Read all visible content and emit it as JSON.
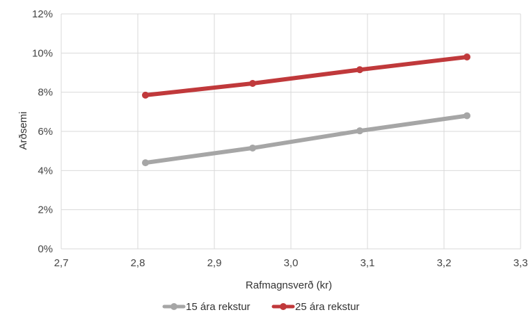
{
  "chart_data": {
    "type": "scatter",
    "xlabel": "Rafmagnsverð (kr)",
    "ylabel": "Arðsemi",
    "xlim": [
      2.7,
      3.3
    ],
    "ylim": [
      0,
      0.12
    ],
    "x_ticks": [
      "2,7",
      "2,8",
      "2,9",
      "3,0",
      "3,1",
      "3,2",
      "3,3"
    ],
    "y_ticks": [
      "0%",
      "2%",
      "4%",
      "6%",
      "8%",
      "10%",
      "12%"
    ],
    "grid": "vertical and horizontal",
    "legend_position": "bottom",
    "series": [
      {
        "name": "15 ára rekstur",
        "color": "#a6a6a6",
        "x": [
          2.81,
          2.95,
          3.09,
          3.23
        ],
        "y": [
          0.044,
          0.0515,
          0.0603,
          0.068
        ]
      },
      {
        "name": "25 ára rekstur",
        "color": "#c0393b",
        "x": [
          2.81,
          2.95,
          3.09,
          3.23
        ],
        "y": [
          0.0785,
          0.0845,
          0.0915,
          0.098
        ]
      }
    ]
  }
}
